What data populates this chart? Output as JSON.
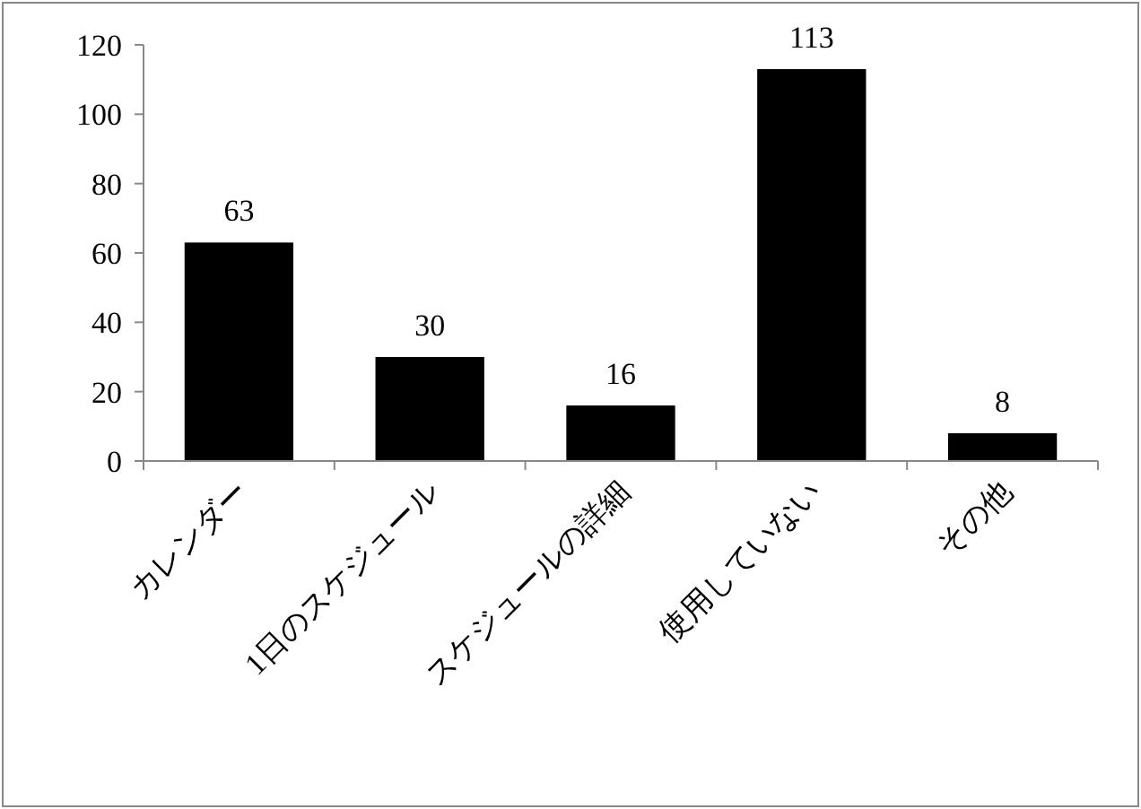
{
  "chart_data": {
    "type": "bar",
    "categories": [
      "カレンダー",
      "1日のスケジュール",
      "スケジュールの詳細",
      "使用していない",
      "その他"
    ],
    "values": [
      63,
      30,
      16,
      113,
      8
    ],
    "color": "#000000",
    "ylim": [
      0,
      120
    ],
    "yticks": [
      0,
      20,
      40,
      60,
      80,
      100,
      120
    ],
    "data_labels": true
  }
}
